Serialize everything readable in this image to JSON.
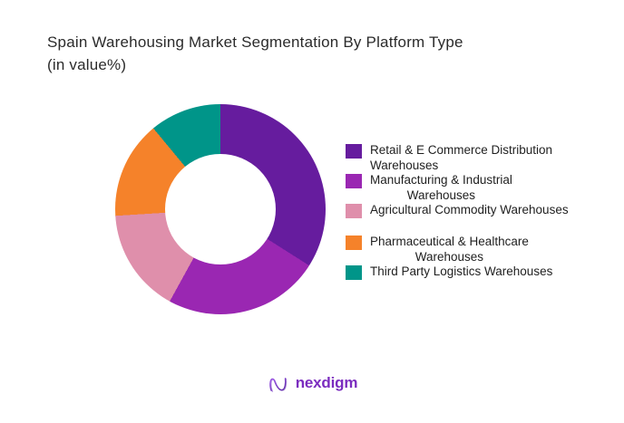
{
  "header": {
    "title_line1": "Spain Warehousing Market Segmentation By Platform Type",
    "title_line2": "(in value%)"
  },
  "chart_data": {
    "type": "pie",
    "donut": true,
    "title": "Spain Warehousing Market Segmentation By Platform Type (in value%)",
    "start_angle_deg": 0,
    "direction": "clockwise",
    "legend_position": "right",
    "hole_ratio": 0.53,
    "slices": [
      {
        "label": "Retail & E Commerce Distribution Warehouses",
        "value": 34,
        "color": "#661C9E"
      },
      {
        "label": "Manufacturing & Industrial Warehouses",
        "value": 24,
        "color": "#9A27B2"
      },
      {
        "label": "Agricultural Commodity Warehouses",
        "value": 16,
        "color": "#DF8FAB"
      },
      {
        "label": "Pharmaceutical & Healthcare Warehouses",
        "value": 15,
        "color": "#F5822A"
      },
      {
        "label": "Third Party Logistics Warehouses",
        "value": 11,
        "color": "#009589"
      }
    ]
  },
  "legend": {
    "items": [
      {
        "lines": [
          "Retail & E Commerce Distribution",
          "Warehouses"
        ],
        "wrap_align": "left"
      },
      {
        "lines": [
          "Manufacturing & Industrial",
          "Warehouses"
        ],
        "wrap_align": "center"
      },
      {
        "lines": [
          "Agricultural Commodity Warehouses"
        ],
        "wrap_align": "left"
      },
      {
        "lines": [
          "Pharmaceutical & Healthcare",
          "Warehouses"
        ],
        "wrap_align": "center",
        "group_start": true
      },
      {
        "lines": [
          "Third Party Logistics Warehouses"
        ],
        "wrap_align": "left"
      }
    ]
  },
  "footer": {
    "brand": "nexdigm",
    "brand_color": "#7B2CBF",
    "icon_gradient": [
      "#A05BE8",
      "#5D2AA6"
    ]
  }
}
